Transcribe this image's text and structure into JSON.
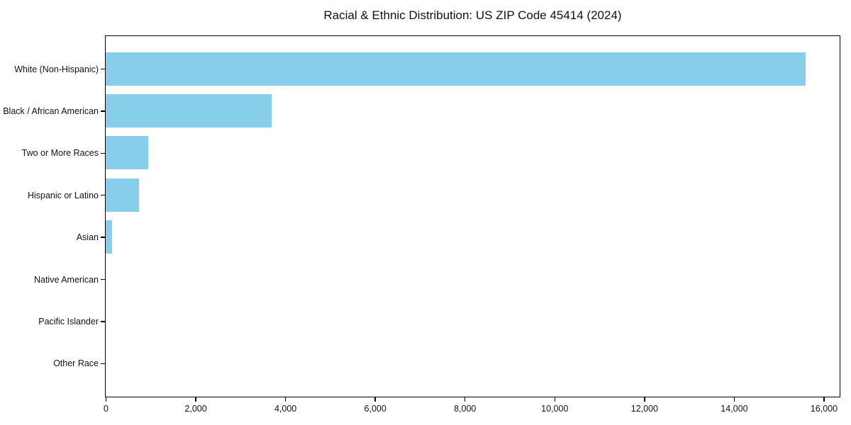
{
  "colors": {
    "background": "#ffffff",
    "bar": "#87CEEB",
    "text": "#111111",
    "spine": "#000000"
  },
  "chart_data": {
    "type": "bar",
    "orientation": "horizontal",
    "title": "Racial & Ethnic Distribution: US ZIP Code 45414 (2024)",
    "categories": [
      "White (Non-Hispanic)",
      "Black / African American",
      "Two or More Races",
      "Hispanic or Latino",
      "Asian",
      "Native American",
      "Pacific Islander",
      "Other Race"
    ],
    "values": [
      15600,
      3700,
      950,
      750,
      150,
      0,
      0,
      0
    ],
    "xlabel": "",
    "ylabel": "",
    "xlim": [
      0,
      16340
    ],
    "xticks": [
      0,
      2000,
      4000,
      6000,
      8000,
      10000,
      12000,
      14000,
      16000
    ],
    "xtick_labels": [
      "0",
      "2,000",
      "4,000",
      "6,000",
      "8,000",
      "10,000",
      "12,000",
      "14,000",
      "16,000"
    ],
    "grid": false,
    "legend": "none",
    "bar_color": "#87CEEB"
  }
}
